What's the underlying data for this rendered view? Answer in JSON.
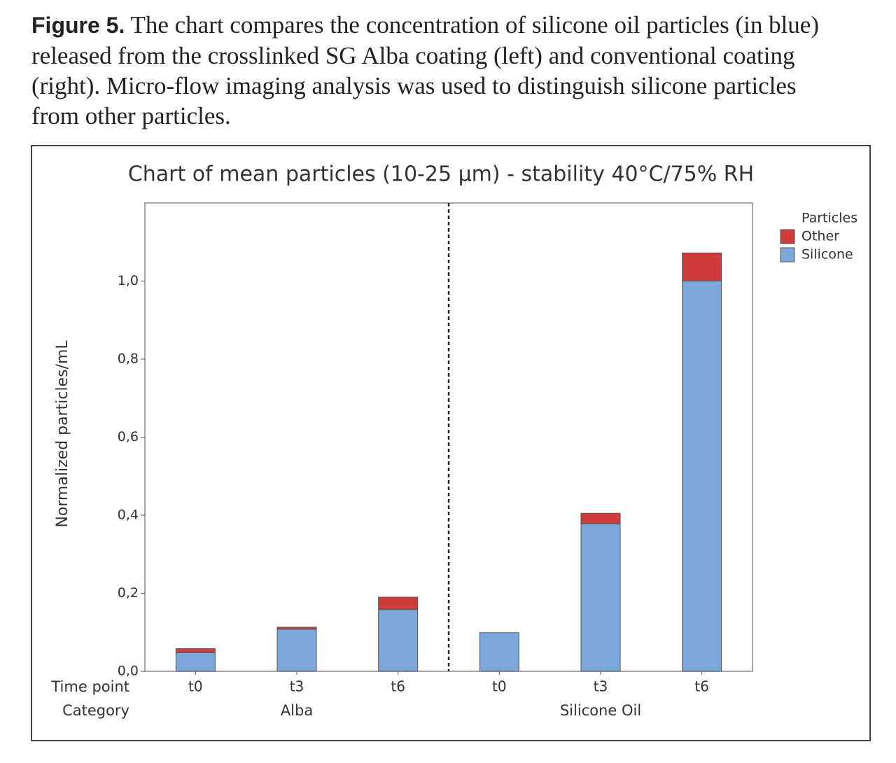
{
  "caption": {
    "label": "Figure 5.",
    "text": "The chart compares the concentration of silicone oil particles (in blue) released from the crosslinked SG Alba coating (left) and conventional coating (right). Micro-flow imaging analysis was used to distinguish silicone particles from other particles."
  },
  "chart_data": {
    "type": "stacked-bar",
    "title": "Chart of mean particles (10-25 µm) - stability 40°C/75% RH",
    "y_label": "Normalized particles/mL",
    "row_labels": [
      "Time point",
      "Category"
    ],
    "groups": [
      {
        "name": "Alba",
        "categories": [
          "t0",
          "t3",
          "t6"
        ]
      },
      {
        "name": "Silicone Oil",
        "categories": [
          "t0",
          "t3",
          "t6"
        ]
      }
    ],
    "legend_title": "Particles",
    "legend_position": "right",
    "series": [
      {
        "name": "Silicone",
        "color": "#7ba7db",
        "values": [
          0.048,
          0.108,
          0.158,
          0.099,
          0.378,
          1.0
        ]
      },
      {
        "name": "Other",
        "color": "#d03c3c",
        "values": [
          0.01,
          0.005,
          0.032,
          0,
          0.027,
          0.072
        ]
      }
    ],
    "ylim": [
      0,
      1.2
    ],
    "yticks": [
      {
        "value": 0,
        "label": "0,0"
      },
      {
        "value": 0.2,
        "label": "0,2"
      },
      {
        "value": 0.4,
        "label": "0,4"
      },
      {
        "value": 0.6,
        "label": "0,6"
      },
      {
        "value": 0.8,
        "label": "0,8"
      },
      {
        "value": 1,
        "label": "1,0"
      }
    ]
  }
}
